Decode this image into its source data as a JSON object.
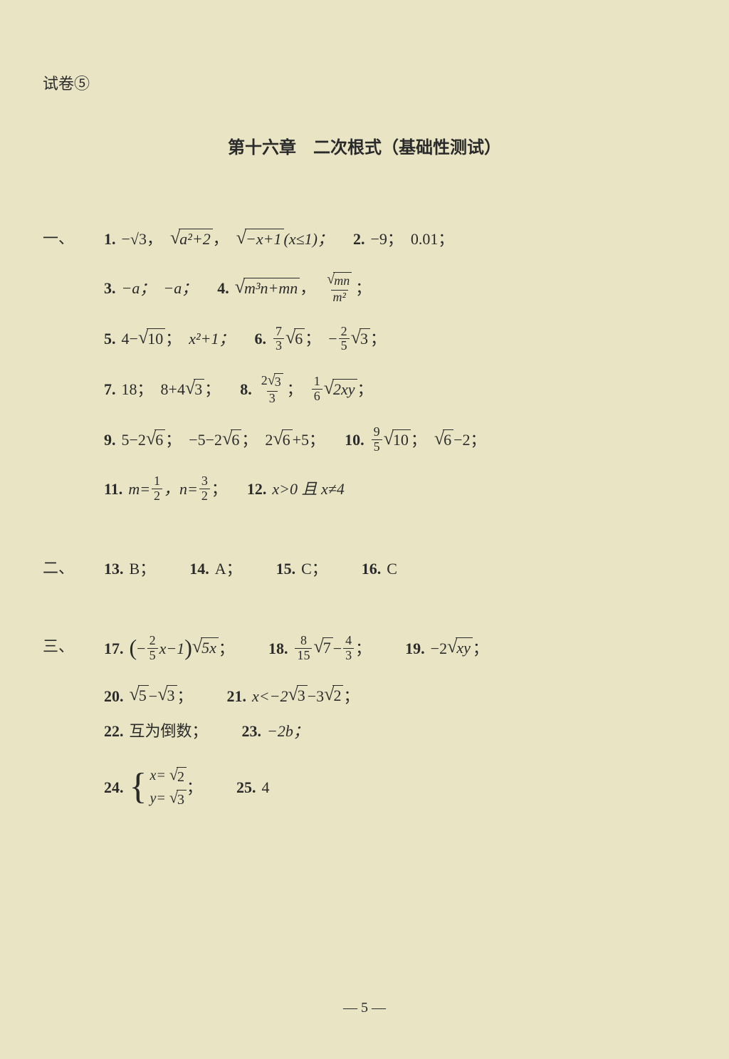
{
  "header": {
    "exam_label": "试卷⑤",
    "chapter_title": "第十六章　二次根式（基础性测试）"
  },
  "sections": {
    "one": {
      "label": "一、",
      "problems": {
        "p1": {
          "num": "1.",
          "a": "−√3，",
          "b_inner": "a²+2",
          "c_pre": "，",
          "c_inner": "−x+1",
          "c_suffix": "(x≤1)；"
        },
        "p2": {
          "num": "2.",
          "a": "−9；",
          "b": "0.01；"
        },
        "p3": {
          "num": "3.",
          "a": "−a；",
          "b": "−a；"
        },
        "p4": {
          "num": "4.",
          "a_inner": "m³n+mn",
          "a_suffix": "，",
          "b_frac_num_inner": "mn",
          "b_frac_den": "m²",
          "b_suffix": "；"
        },
        "p5": {
          "num": "5.",
          "a": "4−",
          "a_inner": "10",
          "a_suffix": "；",
          "b": "x²+1；"
        },
        "p6": {
          "num": "6.",
          "a_num": "7",
          "a_den": "3",
          "a_inner": "6",
          "a_suffix": "；",
          "b_pre": "−",
          "b_num": "2",
          "b_den": "5",
          "b_inner": "3",
          "b_suffix": "；"
        },
        "p7": {
          "num": "7.",
          "a": "18；",
          "b": "8+4",
          "b_inner": "3",
          "b_suffix": "；"
        },
        "p8": {
          "num": "8.",
          "a_num_pre": "2",
          "a_num_inner": "3",
          "a_den": "3",
          "a_suffix": "；",
          "b_num": "1",
          "b_den": "6",
          "b_inner": "2xy",
          "b_suffix": "；"
        },
        "p9": {
          "num": "9.",
          "a": "5−2",
          "a_inner": "6",
          "a_suffix": "；",
          "b": "−5−2",
          "b_inner": "6",
          "b_suffix": "；",
          "c": "2",
          "c_inner": "6",
          "c_suffix": "+5；"
        },
        "p10": {
          "num": "10.",
          "a_num": "9",
          "a_den": "5",
          "a_inner": "10",
          "a_suffix": "；",
          "b_inner": "6",
          "b_suffix": "−2；"
        },
        "p11": {
          "num": "11.",
          "a_pre": "m=",
          "a_num": "1",
          "a_den": "2",
          "a_mid": "，n=",
          "b_num": "3",
          "b_den": "2",
          "b_suffix": "；"
        },
        "p12": {
          "num": "12.",
          "a": "x>0 且 x≠4"
        }
      }
    },
    "two": {
      "label": "二、",
      "problems": {
        "p13": {
          "num": "13.",
          "ans": "B；"
        },
        "p14": {
          "num": "14.",
          "ans": "A；"
        },
        "p15": {
          "num": "15.",
          "ans": "C；"
        },
        "p16": {
          "num": "16.",
          "ans": "C"
        }
      }
    },
    "three": {
      "label": "三、",
      "problems": {
        "p17": {
          "num": "17.",
          "paren_pre": "−",
          "paren_num": "2",
          "paren_den": "5",
          "paren_post": "x−1",
          "outer_inner": "5x",
          "suffix": "；"
        },
        "p18": {
          "num": "18.",
          "a_num": "8",
          "a_den": "15",
          "a_inner": "7",
          "mid": "−",
          "b_num": "4",
          "b_den": "3",
          "suffix": "；"
        },
        "p19": {
          "num": "19.",
          "pre": "−2 ",
          "inner": "xy",
          "suffix": "；"
        },
        "p20": {
          "num": "20.",
          "a_inner": "5",
          "mid": "−",
          "b_inner": "3",
          "suffix": "；"
        },
        "p21": {
          "num": "21.",
          "pre": "x<−2",
          "a_inner": "3",
          "mid": "−3",
          "b_inner": "2",
          "suffix": "；"
        },
        "p22": {
          "num": "22.",
          "ans": "互为倒数；"
        },
        "p23": {
          "num": "23.",
          "ans": "−2b；"
        },
        "p24": {
          "num": "24.",
          "eq1_lhs": "x=",
          "eq1_inner": "2",
          "eq2_lhs": "y=",
          "eq2_inner": "3",
          "suffix": "；"
        },
        "p25": {
          "num": "25.",
          "ans": "4"
        }
      }
    }
  },
  "page_number": "— 5 —",
  "colors": {
    "background": "#e8e4c4",
    "text": "#2a2a2a"
  },
  "typography": {
    "body_fontsize": 22,
    "title_fontsize": 24,
    "title_weight": "bold",
    "font_family": "SimSun / Times New Roman"
  }
}
